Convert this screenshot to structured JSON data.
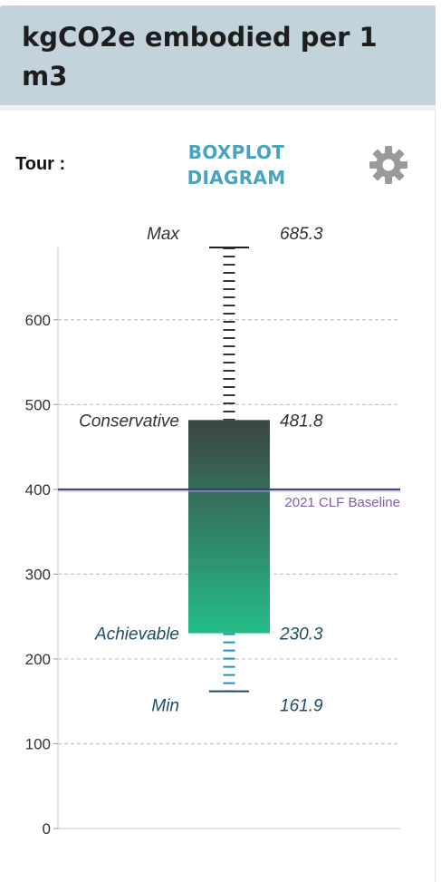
{
  "header": {
    "title": "kgCO2e embodied per 1 m3"
  },
  "tour_label": "Tour :",
  "boxplot_title": "BOXPLOT DIAGRAM",
  "colors": {
    "header_bg": "#c3d3dc",
    "title_accent": "#4aa3bd",
    "box_top": "#3d4541",
    "box_bottom": "#25bc88",
    "baseline": "#3a3a7e",
    "baseline_label": "#8060a8",
    "lower_whisker": "#1e90cc",
    "upper_whisker": "#333333"
  },
  "icons": {
    "settings": "gear-icon"
  },
  "chart_data": {
    "type": "boxplot",
    "title": "",
    "xlabel": "",
    "ylabel": "",
    "ylim": [
      0,
      685.3
    ],
    "yticks": [
      0,
      100,
      200,
      300,
      400,
      500,
      600
    ],
    "grid": true,
    "stats": {
      "max": {
        "label": "Max",
        "value": 685.3,
        "display": "685.3"
      },
      "conservative": {
        "label": "Conservative",
        "value": 481.8,
        "display": "481.8"
      },
      "achievable": {
        "label": "Achievable",
        "value": 230.3,
        "display": "230.3"
      },
      "min": {
        "label": "Min",
        "value": 161.9,
        "display": "161.9"
      }
    },
    "baseline": {
      "label": "2021 CLF Baseline",
      "value": 400
    }
  }
}
